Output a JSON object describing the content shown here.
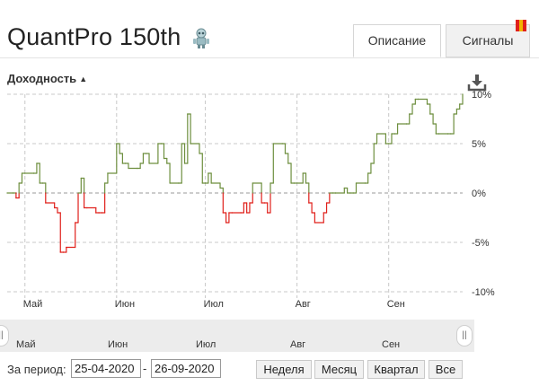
{
  "header": {
    "title": "QuantPro 150th",
    "tabs": [
      {
        "label": "Описание",
        "active": true
      },
      {
        "label": "Сигналы",
        "active": false
      }
    ]
  },
  "section": {
    "title": "Доходность"
  },
  "navigator": {
    "labels": [
      "Май",
      "Июн",
      "Июл",
      "Авг",
      "Сен"
    ]
  },
  "period": {
    "label": "За период:",
    "from": "25-04-2020",
    "to": "26-09-2020",
    "separator": "-",
    "buttons": [
      "Неделя",
      "Месяц",
      "Квартал",
      "Все"
    ]
  },
  "colors": {
    "positive": "#6e8f3f",
    "negative": "#e0201b",
    "grid": "#c8c8c8",
    "zero_line": "#999999"
  },
  "icons": [
    "robot-icon",
    "bookmark-icon",
    "caret-up-icon",
    "download-icon",
    "handle-grip-icon"
  ],
  "chart_data": {
    "type": "line",
    "x_ticks": [
      "Май",
      "Июн",
      "Июл",
      "Авг",
      "Сен"
    ],
    "y_ticks": [
      "10%",
      "5%",
      "0%",
      "-5%",
      "-10%"
    ],
    "ylim": [
      -10,
      10
    ],
    "xlim": [
      "2020-04-25",
      "2020-09-26"
    ],
    "grid": true,
    "zero_line": true,
    "colors": "green above 0%, red below 0%",
    "series": [
      {
        "x": [
          "2020-04-25",
          "2020-04-27",
          "2020-04-28",
          "2020-04-29",
          "2020-04-30",
          "2020-05-01",
          "2020-05-04",
          "2020-05-05",
          "2020-05-06",
          "2020-05-07",
          "2020-05-08",
          "2020-05-11",
          "2020-05-12",
          "2020-05-13",
          "2020-05-14",
          "2020-05-15",
          "2020-05-18",
          "2020-05-19",
          "2020-05-20",
          "2020-05-21",
          "2020-05-22",
          "2020-05-25",
          "2020-05-26",
          "2020-05-27",
          "2020-05-28",
          "2020-05-29",
          "2020-06-01",
          "2020-06-02",
          "2020-06-03",
          "2020-06-04",
          "2020-06-05",
          "2020-06-08",
          "2020-06-09",
          "2020-06-10",
          "2020-06-11",
          "2020-06-12",
          "2020-06-15",
          "2020-06-16",
          "2020-06-17",
          "2020-06-18",
          "2020-06-19",
          "2020-06-22",
          "2020-06-23",
          "2020-06-24",
          "2020-06-25",
          "2020-06-26",
          "2020-06-29",
          "2020-06-30",
          "2020-07-01",
          "2020-07-02",
          "2020-07-03",
          "2020-07-06",
          "2020-07-07",
          "2020-07-08",
          "2020-07-09",
          "2020-07-10",
          "2020-07-13",
          "2020-07-14",
          "2020-07-15",
          "2020-07-16",
          "2020-07-17",
          "2020-07-20",
          "2020-07-21",
          "2020-07-22",
          "2020-07-23",
          "2020-07-24",
          "2020-07-27",
          "2020-07-28",
          "2020-07-29",
          "2020-07-30",
          "2020-07-31",
          "2020-08-03",
          "2020-08-04",
          "2020-08-05",
          "2020-08-06",
          "2020-08-07",
          "2020-08-10",
          "2020-08-11",
          "2020-08-12",
          "2020-08-13",
          "2020-08-14",
          "2020-08-17",
          "2020-08-18",
          "2020-08-19",
          "2020-08-20",
          "2020-08-21",
          "2020-08-24",
          "2020-08-25",
          "2020-08-26",
          "2020-08-27",
          "2020-08-28",
          "2020-08-31",
          "2020-09-01",
          "2020-09-02",
          "2020-09-03",
          "2020-09-04",
          "2020-09-07",
          "2020-09-08",
          "2020-09-09",
          "2020-09-10",
          "2020-09-11",
          "2020-09-14",
          "2020-09-15",
          "2020-09-16",
          "2020-09-17",
          "2020-09-18",
          "2020-09-21",
          "2020-09-22",
          "2020-09-23",
          "2020-09-24",
          "2020-09-25",
          "2020-09-26"
        ],
        "y": [
          0,
          0,
          -0.5,
          1,
          2,
          2,
          2,
          3,
          1,
          1,
          -1,
          -1.5,
          -2,
          -6,
          -6,
          -5.5,
          -3,
          0,
          1.5,
          -1.5,
          -1.5,
          -2,
          -2,
          -2,
          1,
          2,
          5,
          4,
          3,
          3,
          2.5,
          2.5,
          3,
          4,
          4,
          3,
          5,
          5,
          3.5,
          3,
          1,
          1,
          5,
          3,
          8,
          5,
          4,
          1,
          1,
          2,
          1,
          0.5,
          -2,
          -3,
          -2,
          -2,
          -2,
          -1,
          -2,
          -1,
          1,
          -1,
          -1,
          -2,
          1,
          5,
          5,
          4,
          3,
          1,
          1,
          2,
          1,
          -1,
          -2,
          -3,
          -2,
          -1,
          0,
          0,
          0,
          0.5,
          0,
          0,
          0,
          1,
          1,
          2,
          3,
          5,
          6,
          5,
          5,
          6,
          6,
          7,
          7,
          8,
          9,
          9.5,
          9.5,
          9,
          8,
          7,
          6,
          6,
          6,
          6,
          8,
          8.5,
          9,
          10
        ]
      }
    ]
  }
}
